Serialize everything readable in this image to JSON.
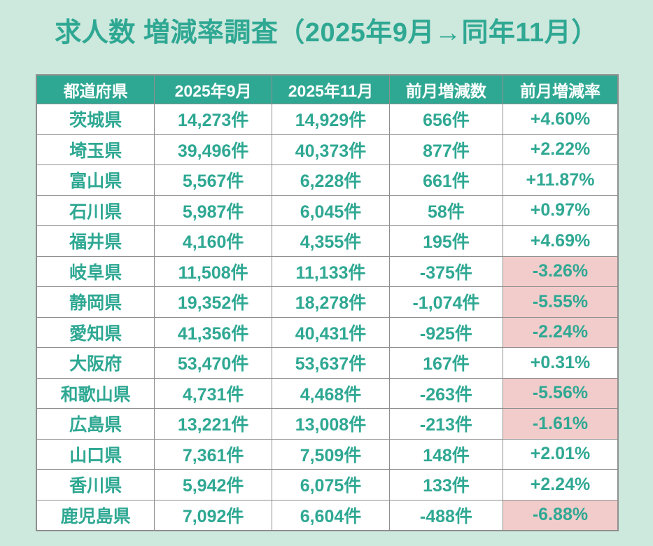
{
  "page": {
    "title": "求人数 増減率調査（2025年9月→同年11月）",
    "colors": {
      "background": "#cde8dd",
      "accent_teal": "#2fa893",
      "header_background": "#2fa893",
      "header_text": "#ffffff",
      "cell_background": "#ffffff",
      "negative_cell_background": "#f2cccb",
      "border": "#8f8f8f"
    }
  },
  "chart_data": {
    "type": "table",
    "title": "求人数 増減率調査（2025年9月→同年11月）",
    "columns": [
      "都道府県",
      "2025年9月",
      "2025年11月",
      "前月増減数",
      "前月増減率"
    ],
    "rows": [
      {
        "cells": [
          "茨城県",
          "14,273件",
          "14,929件",
          "656件",
          "+4.60%"
        ],
        "negative": false
      },
      {
        "cells": [
          "埼玉県",
          "39,496件",
          "40,373件",
          "877件",
          "+2.22%"
        ],
        "negative": false
      },
      {
        "cells": [
          "富山県",
          "5,567件",
          "6,228件",
          "661件",
          "+11.87%"
        ],
        "negative": false
      },
      {
        "cells": [
          "石川県",
          "5,987件",
          "6,045件",
          "58件",
          "+0.97%"
        ],
        "negative": false
      },
      {
        "cells": [
          "福井県",
          "4,160件",
          "4,355件",
          "195件",
          "+4.69%"
        ],
        "negative": false
      },
      {
        "cells": [
          "岐阜県",
          "11,508件",
          "11,133件",
          "-375件",
          "-3.26%"
        ],
        "negative": true
      },
      {
        "cells": [
          "静岡県",
          "19,352件",
          "18,278件",
          "-1,074件",
          "-5.55%"
        ],
        "negative": true
      },
      {
        "cells": [
          "愛知県",
          "41,356件",
          "40,431件",
          "-925件",
          "-2.24%"
        ],
        "negative": true
      },
      {
        "cells": [
          "大阪府",
          "53,470件",
          "53,637件",
          "167件",
          "+0.31%"
        ],
        "negative": false
      },
      {
        "cells": [
          "和歌山県",
          "4,731件",
          "4,468件",
          "-263件",
          "-5.56%"
        ],
        "negative": true
      },
      {
        "cells": [
          "広島県",
          "13,221件",
          "13,008件",
          "-213件",
          "-1.61%"
        ],
        "negative": true
      },
      {
        "cells": [
          "山口県",
          "7,361件",
          "7,509件",
          "148件",
          "+2.01%"
        ],
        "negative": false
      },
      {
        "cells": [
          "香川県",
          "5,942件",
          "6,075件",
          "133件",
          "+2.24%"
        ],
        "negative": false
      },
      {
        "cells": [
          "鹿児島県",
          "7,092件",
          "6,604件",
          "-488件",
          "-6.88%"
        ],
        "negative": true
      }
    ],
    "numeric_rows": [
      {
        "prefecture": "茨城県",
        "sep_2025": 14273,
        "nov_2025": 14929,
        "diff": 656,
        "rate_pct": 4.6
      },
      {
        "prefecture": "埼玉県",
        "sep_2025": 39496,
        "nov_2025": 40373,
        "diff": 877,
        "rate_pct": 2.22
      },
      {
        "prefecture": "富山県",
        "sep_2025": 5567,
        "nov_2025": 6228,
        "diff": 661,
        "rate_pct": 11.87
      },
      {
        "prefecture": "石川県",
        "sep_2025": 5987,
        "nov_2025": 6045,
        "diff": 58,
        "rate_pct": 0.97
      },
      {
        "prefecture": "福井県",
        "sep_2025": 4160,
        "nov_2025": 4355,
        "diff": 195,
        "rate_pct": 4.69
      },
      {
        "prefecture": "岐阜県",
        "sep_2025": 11508,
        "nov_2025": 11133,
        "diff": -375,
        "rate_pct": -3.26
      },
      {
        "prefecture": "静岡県",
        "sep_2025": 19352,
        "nov_2025": 18278,
        "diff": -1074,
        "rate_pct": -5.55
      },
      {
        "prefecture": "愛知県",
        "sep_2025": 41356,
        "nov_2025": 40431,
        "diff": -925,
        "rate_pct": -2.24
      },
      {
        "prefecture": "大阪府",
        "sep_2025": 53470,
        "nov_2025": 53637,
        "diff": 167,
        "rate_pct": 0.31
      },
      {
        "prefecture": "和歌山県",
        "sep_2025": 4731,
        "nov_2025": 4468,
        "diff": -263,
        "rate_pct": -5.56
      },
      {
        "prefecture": "広島県",
        "sep_2025": 13221,
        "nov_2025": 13008,
        "diff": -213,
        "rate_pct": -1.61
      },
      {
        "prefecture": "山口県",
        "sep_2025": 7361,
        "nov_2025": 7509,
        "diff": 148,
        "rate_pct": 2.01
      },
      {
        "prefecture": "香川県",
        "sep_2025": 5942,
        "nov_2025": 6075,
        "diff": 133,
        "rate_pct": 2.24
      },
      {
        "prefecture": "鹿児島県",
        "sep_2025": 7092,
        "nov_2025": 6604,
        "diff": -488,
        "rate_pct": -6.88
      }
    ],
    "layout": {
      "highlight_rule": "negative 前月増減率 cells have pink background",
      "text_alignment": "center"
    }
  }
}
